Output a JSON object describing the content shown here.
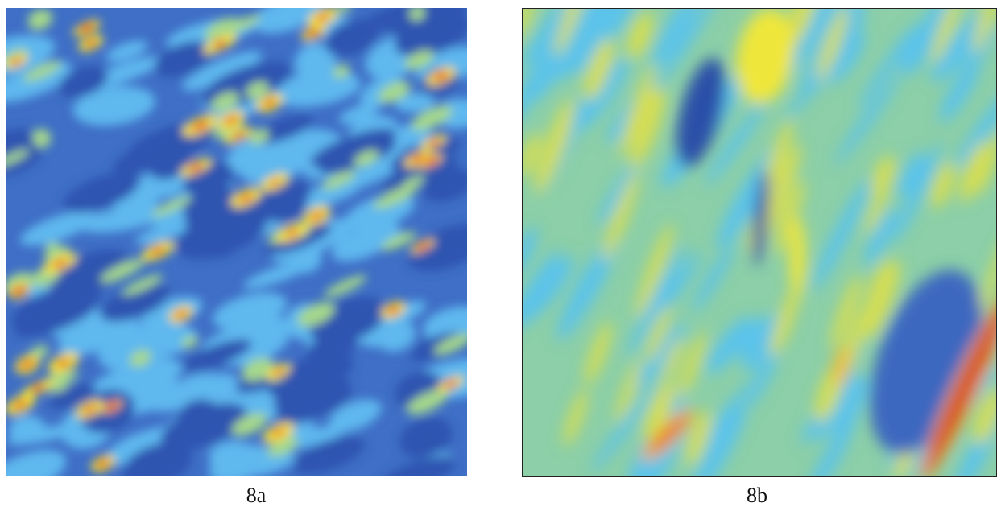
{
  "panels": [
    {
      "caption": "8a"
    },
    {
      "caption": "8b"
    }
  ]
}
